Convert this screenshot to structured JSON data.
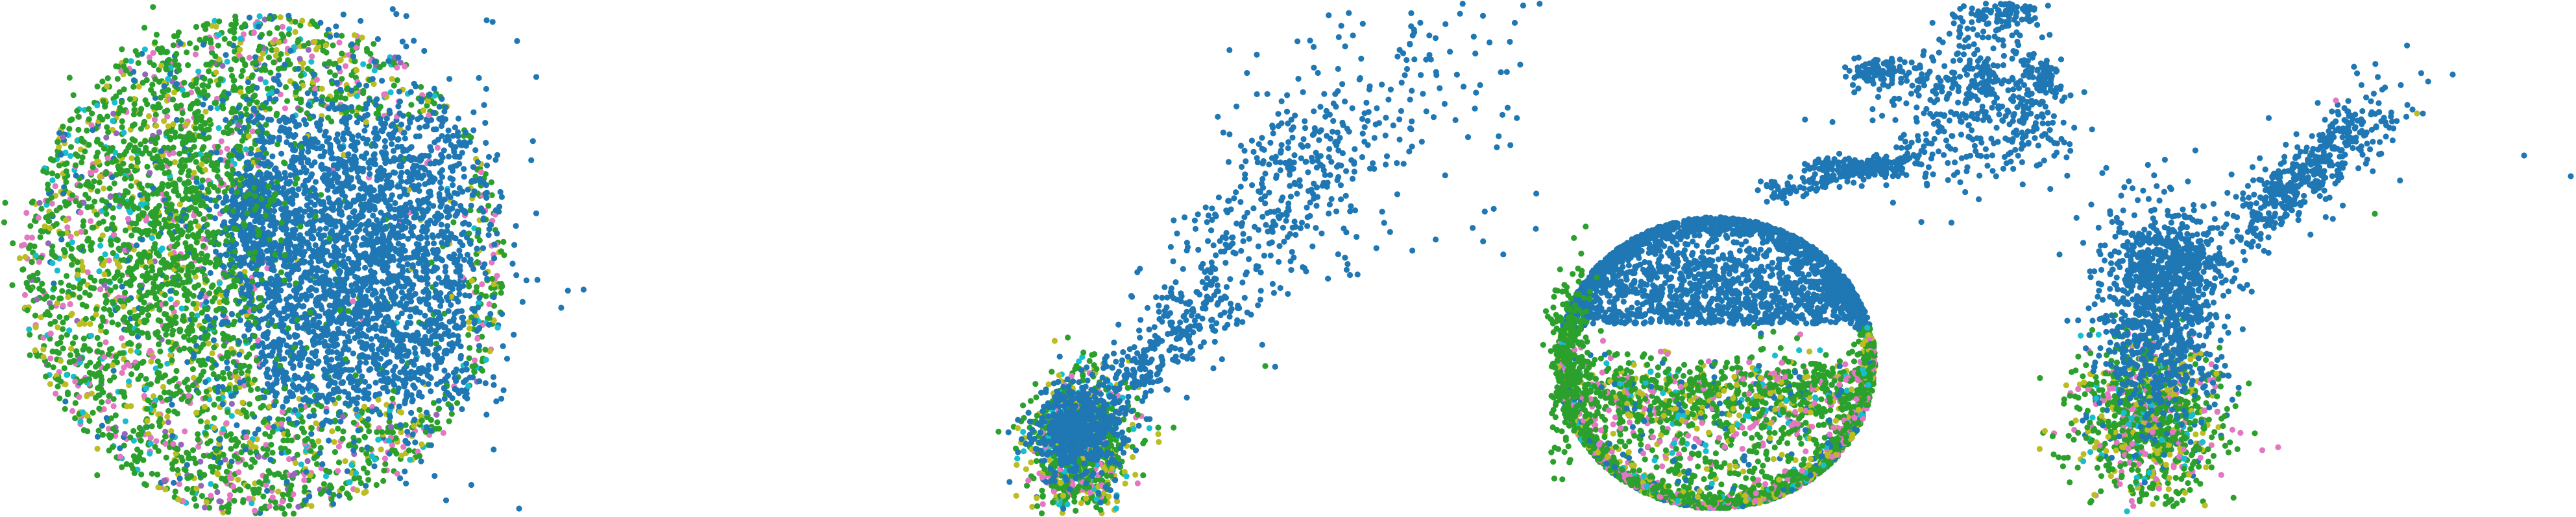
{
  "colors": {
    "blue": "#1f77b4",
    "green": "#2ca02c",
    "olive": "#bcbd22",
    "pink": "#e377c2",
    "cyan": "#17becf",
    "purple": "#9467bd"
  },
  "chart_data": [
    {
      "type": "scatter",
      "title": "",
      "xlabel": "",
      "ylabel": "",
      "axes_visible": false,
      "grid": false,
      "legend": "none",
      "shape": "disc with an inner blue cluster (right half) and a mixed-color outer ring",
      "series": [
        {
          "color": "blue",
          "share": 0.42
        },
        {
          "color": "green",
          "share": 0.34
        },
        {
          "color": "olive",
          "share": 0.1
        },
        {
          "color": "pink",
          "share": 0.08
        },
        {
          "color": "cyan",
          "share": 0.04
        },
        {
          "color": "purple",
          "share": 0.02
        }
      ]
    },
    {
      "type": "scatter",
      "title": "",
      "xlabel": "",
      "ylabel": "",
      "axes_visible": false,
      "grid": false,
      "legend": "none",
      "shape": "dense mixed-color clump at lower left with a sparse blue trail rising to the upper right",
      "series": [
        {
          "color": "blue",
          "share": 0.78
        },
        {
          "color": "green",
          "share": 0.14
        },
        {
          "color": "olive",
          "share": 0.04
        },
        {
          "color": "pink",
          "share": 0.02
        },
        {
          "color": "cyan",
          "share": 0.02
        }
      ]
    },
    {
      "type": "scatter",
      "title": "",
      "xlabel": "",
      "ylabel": "",
      "axes_visible": false,
      "grid": false,
      "legend": "none",
      "shape": "hollow sphere (blue upper cap, mixed lower shell) with blue bands trailing to the upper right",
      "series": [
        {
          "color": "blue",
          "share": 0.52
        },
        {
          "color": "green",
          "share": 0.32
        },
        {
          "color": "pink",
          "share": 0.07
        },
        {
          "color": "olive",
          "share": 0.06
        },
        {
          "color": "cyan",
          "share": 0.03
        }
      ]
    },
    {
      "type": "scatter",
      "title": "",
      "xlabel": "",
      "ylabel": "",
      "axes_visible": false,
      "grid": false,
      "legend": "none",
      "shape": "blue column over a mixed-color base, with a blue diagonal streak to the upper right",
      "series": [
        {
          "color": "blue",
          "share": 0.55
        },
        {
          "color": "green",
          "share": 0.27
        },
        {
          "color": "olive",
          "share": 0.08
        },
        {
          "color": "pink",
          "share": 0.07
        },
        {
          "color": "cyan",
          "share": 0.03
        }
      ]
    }
  ]
}
